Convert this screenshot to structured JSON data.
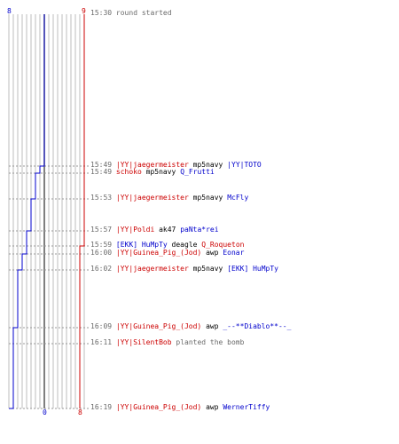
{
  "graph": {
    "blue_start": "8",
    "red_start": "9",
    "blue_end": "0",
    "red_end": "8",
    "blue_color": "#0000cc",
    "red_color": "#cc0000",
    "grid_color": "#bdbdbd"
  },
  "events": [
    {
      "time": "15:30",
      "message": "round started"
    },
    {
      "time": "15:49",
      "killer": "|YY|jaegermeister",
      "killer_team": "red",
      "weapon": "mp5navy",
      "victim": "|YY|TOTO",
      "victim_team": "blue"
    },
    {
      "time": "15:49",
      "killer": "schoko",
      "killer_team": "red",
      "weapon": "mp5navy",
      "victim": "Q_Frutti",
      "victim_team": "blue"
    },
    {
      "time": "15:53",
      "killer": "|YY|jaegermeister",
      "killer_team": "red",
      "weapon": "mp5navy",
      "victim": "McFly",
      "victim_team": "blue"
    },
    {
      "time": "15:57",
      "killer": "|YY|Poldi",
      "killer_team": "red",
      "weapon": "ak47",
      "victim": "paNta*rei",
      "victim_team": "blue"
    },
    {
      "time": "15:59",
      "killer": "[EKK] HuMpTy",
      "killer_team": "blue",
      "weapon": "deagle",
      "victim": "Q_Roqueton",
      "victim_team": "red"
    },
    {
      "time": "16:00",
      "killer": "|YY|Guinea_Pig_(Jod)",
      "killer_team": "red",
      "weapon": "awp",
      "victim": "Eonar",
      "victim_team": "blue"
    },
    {
      "time": "16:02",
      "killer": "|YY|jaegermeister",
      "killer_team": "red",
      "weapon": "mp5navy",
      "victim": "[EKK] HuMpTy",
      "victim_team": "blue"
    },
    {
      "time": "16:09",
      "killer": "|YY|Guinea_Pig_(Jod)",
      "killer_team": "red",
      "weapon": "awp",
      "victim": "_--**Diablo**--_",
      "victim_team": "blue"
    },
    {
      "time": "16:11",
      "killer": "|YY|SilentBob",
      "killer_team": "red",
      "message": "planted the bomb"
    },
    {
      "time": "16:19",
      "killer": "|YY|Guinea_Pig_(Jod)",
      "killer_team": "red",
      "weapon": "awp",
      "victim": "WernerTiffy",
      "victim_team": "blue"
    }
  ]
}
